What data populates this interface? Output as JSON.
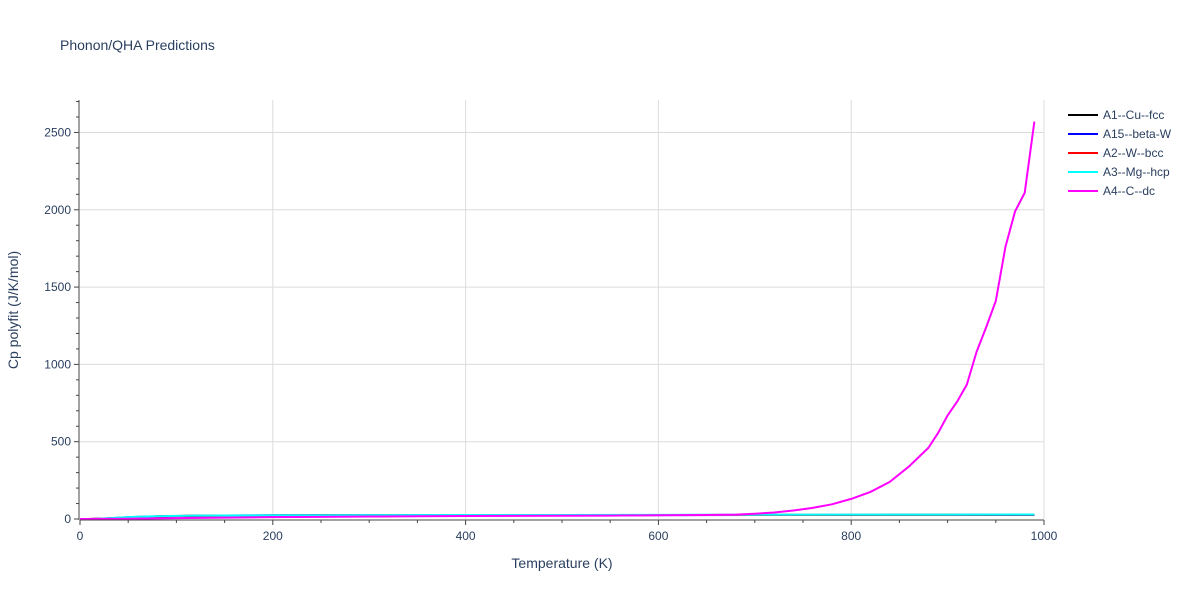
{
  "chart_data": {
    "type": "line",
    "title": "Phonon/QHA Predictions",
    "xlabel": "Temperature (K)",
    "ylabel": "Cp polyfit (J/K/mol)",
    "xlim": [
      0,
      1000
    ],
    "ylim": [
      0,
      2710
    ],
    "xticks": [
      0,
      200,
      400,
      600,
      800,
      1000
    ],
    "yticks": [
      0,
      500,
      1000,
      1500,
      2000,
      2500
    ],
    "grid": true,
    "legend_position": "top-right",
    "series": [
      {
        "name": "A1--Cu--fcc",
        "color": "#000000",
        "x": [
          0,
          10,
          20,
          30,
          40,
          50,
          60,
          80,
          100,
          120,
          150,
          200,
          250,
          300,
          400,
          500,
          600,
          700,
          800,
          900,
          990
        ],
        "y": [
          0,
          0.2,
          1.2,
          3.5,
          6.5,
          9.5,
          12.2,
          16.0,
          18.8,
          20.6,
          22.2,
          23.5,
          24.1,
          24.5,
          25.0,
          25.5,
          25.9,
          26.4,
          26.9,
          27.4,
          27.9
        ]
      },
      {
        "name": "A15--beta-W",
        "color": "#0000ff",
        "x": [
          0,
          10,
          20,
          30,
          40,
          50,
          60,
          80,
          100,
          120,
          150,
          200,
          250,
          300,
          400,
          500,
          600,
          700,
          800,
          900,
          990
        ],
        "y": [
          0,
          0.3,
          1.8,
          4.8,
          8.2,
          11.3,
          13.8,
          17.3,
          19.6,
          21.0,
          22.4,
          23.5,
          24.0,
          24.3,
          24.7,
          25.0,
          25.3,
          25.6,
          25.9,
          26.2,
          26.5
        ]
      },
      {
        "name": "A2--W--bcc",
        "color": "#ff0000",
        "x": [
          0,
          10,
          20,
          30,
          40,
          50,
          60,
          80,
          100,
          120,
          150,
          200,
          250,
          300,
          400,
          500,
          600,
          700,
          800,
          900,
          990
        ],
        "y": [
          0,
          0.2,
          1.5,
          4.2,
          7.6,
          10.7,
          13.3,
          17.0,
          19.3,
          20.8,
          22.2,
          23.4,
          24.0,
          24.3,
          24.8,
          25.2,
          25.6,
          26.0,
          26.4,
          26.8,
          27.2
        ]
      },
      {
        "name": "A3--Mg--hcp",
        "color": "#00ffff",
        "x": [
          0,
          10,
          20,
          30,
          40,
          50,
          60,
          80,
          100,
          120,
          150,
          200,
          250,
          300,
          400,
          500,
          600,
          700,
          800,
          900,
          990
        ],
        "y": [
          0,
          0.3,
          2.0,
          5.2,
          8.8,
          12.0,
          14.6,
          18.0,
          20.2,
          21.6,
          23.0,
          24.1,
          24.6,
          25.0,
          25.6,
          26.2,
          26.8,
          27.4,
          28.0,
          28.6,
          29.2
        ]
      },
      {
        "name": "A4--C--dc",
        "color": "#ff00ff",
        "x": [
          0,
          50,
          100,
          150,
          200,
          250,
          300,
          350,
          400,
          450,
          500,
          550,
          600,
          650,
          680,
          700,
          720,
          740,
          760,
          780,
          800,
          820,
          840,
          860,
          880,
          890,
          900,
          910,
          920,
          930,
          940,
          950,
          960,
          970,
          980,
          990
        ],
        "y": [
          0,
          2,
          6,
          9,
          12,
          14,
          16,
          18,
          19,
          20,
          21,
          22,
          24,
          26,
          28,
          34,
          42,
          55,
          72,
          95,
          130,
          175,
          240,
          340,
          460,
          555,
          670,
          760,
          870,
          1080,
          1240,
          1410,
          1760,
          1990,
          2110,
          2570
        ]
      }
    ]
  }
}
